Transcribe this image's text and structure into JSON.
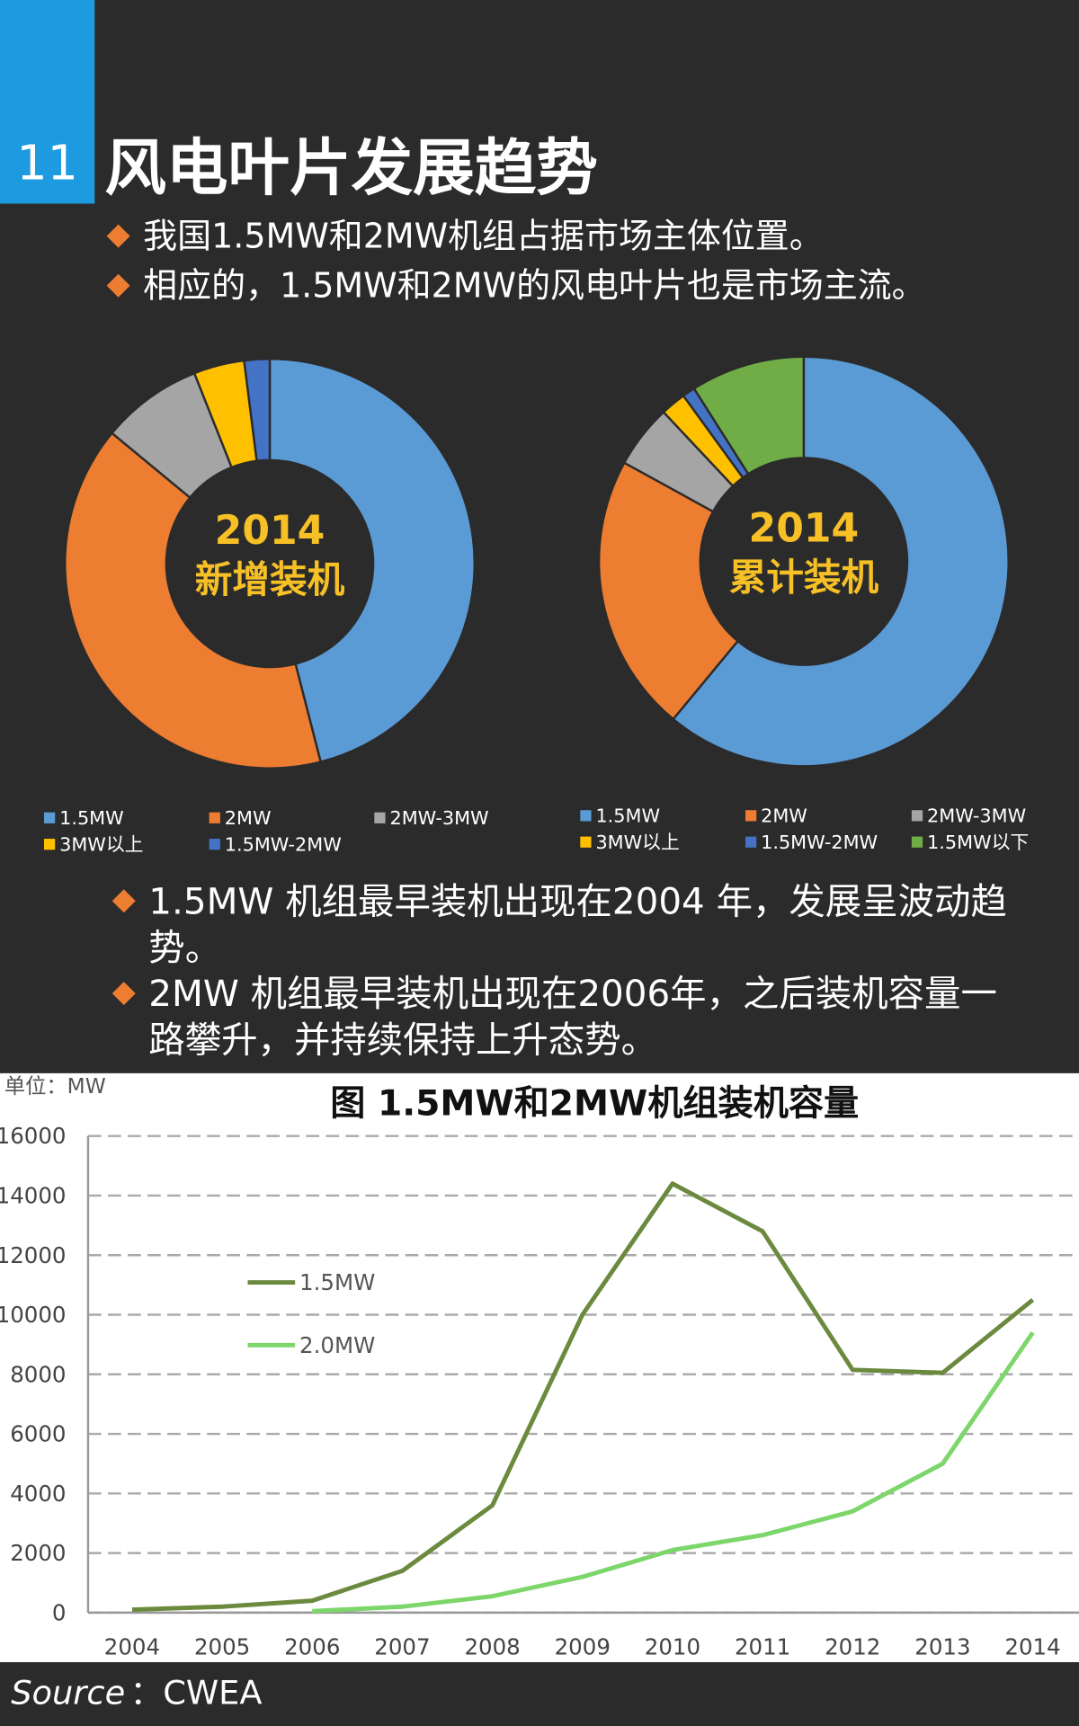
{
  "header": {
    "number": "11",
    "title": "风电叶片发展趋势"
  },
  "bullets_top": [
    "我国1.5MW和2MW机组占据市场主体位置。",
    "相应的，1.5MW和2MW的风电叶片也是市场主流。"
  ],
  "bullets_bottom": [
    "1.5MW 机组最早装机出现在2004 年，发展呈波动趋势。",
    "2MW 机组最早装机出现在2006年，之后装机容量一路攀升，并持续保持上升态势。"
  ],
  "chart_data": [
    {
      "type": "donut",
      "title": "2014",
      "subtitle": "新增装机",
      "categories": [
        "1.5MW",
        "2MW",
        "2MW-3MW",
        "3MW以上",
        "1.5MW-2MW"
      ],
      "values": [
        46,
        40,
        8,
        4,
        2
      ],
      "colors": [
        "#5b9bd5",
        "#ed7d31",
        "#a5a5a5",
        "#ffc000",
        "#4472c4"
      ]
    },
    {
      "type": "donut",
      "title": "2014",
      "subtitle": "累计装机",
      "categories": [
        "1.5MW",
        "2MW",
        "2MW-3MW",
        "3MW以上",
        "1.5MW-2MW",
        "1.5MW以下"
      ],
      "values": [
        61,
        22,
        5,
        2,
        1,
        9
      ],
      "colors": [
        "#5b9bd5",
        "#ed7d31",
        "#a5a5a5",
        "#ffc000",
        "#4472c4",
        "#70ad47"
      ]
    },
    {
      "type": "line",
      "title": "图  1.5MW和2MW机组装机容量",
      "y_label": "单位：MW",
      "categories": [
        "2004",
        "2005",
        "2006",
        "2007",
        "2008",
        "2009",
        "2010",
        "2011",
        "2012",
        "2013",
        "2014"
      ],
      "series": [
        {
          "name": "1.5MW",
          "color": "#6b8a3e",
          "values": [
            100,
            200,
            400,
            1400,
            3600,
            10000,
            14400,
            12800,
            8150,
            8050,
            10500
          ]
        },
        {
          "name": "2.0MW",
          "color": "#7cd66a",
          "values": [
            null,
            null,
            50,
            200,
            550,
            1200,
            2100,
            2600,
            3400,
            5000,
            9400
          ]
        }
      ],
      "ylim": [
        0,
        16000
      ],
      "yticks": [
        0,
        2000,
        4000,
        6000,
        8000,
        10000,
        12000,
        14000,
        16000
      ],
      "grid": true,
      "legend": "upper left"
    }
  ],
  "source_label": "Source",
  "source": "：CWEA"
}
